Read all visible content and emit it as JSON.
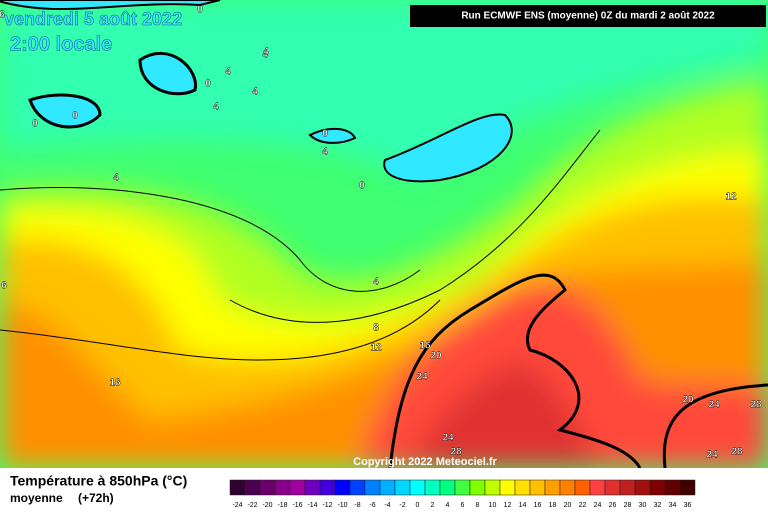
{
  "header": {
    "date": "vendredi 5 août 2022",
    "time": "2:00 locale",
    "run": "Run ECMWF ENS (moyenne) 0Z du mardi 2 août 2022"
  },
  "map": {
    "copyright": "Copyright 2022 Meteociel.fr",
    "contour_labels": [
      0,
      0,
      0,
      4,
      4,
      4,
      4,
      4,
      0,
      4,
      0,
      0,
      4,
      4,
      8,
      12,
      16,
      20,
      24,
      24,
      28,
      20,
      24,
      28,
      24,
      28,
      16,
      12,
      6,
      6
    ]
  },
  "legend": {
    "title": "Température à 850hPa (°C)",
    "subtitle": "moyenne",
    "run_hours": "(+72h)",
    "labels": [
      -24,
      -22,
      -20,
      -18,
      -16,
      -14,
      -12,
      -10,
      -8,
      -6,
      -4,
      -2,
      0,
      2,
      4,
      6,
      8,
      10,
      12,
      14,
      16,
      18,
      20,
      22,
      24,
      26,
      28,
      30,
      32,
      34,
      36
    ],
    "colors": [
      "#300030",
      "#4b0050",
      "#6a006a",
      "#8a008a",
      "#a000a0",
      "#7000c0",
      "#4000e0",
      "#0000ff",
      "#0040ff",
      "#0080ff",
      "#00b0ff",
      "#00d8ff",
      "#00ffff",
      "#00ffc0",
      "#00ff80",
      "#40ff40",
      "#80ff00",
      "#c0ff00",
      "#ffff00",
      "#ffe000",
      "#ffc000",
      "#ffa000",
      "#ff8000",
      "#ff6000",
      "#ff4040",
      "#e03030",
      "#c02020",
      "#a01010",
      "#800000",
      "#600000",
      "#400000"
    ]
  }
}
